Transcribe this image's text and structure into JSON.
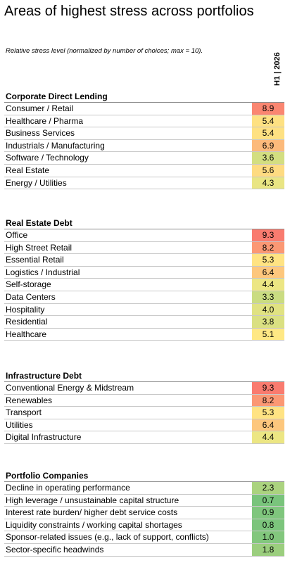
{
  "header": {
    "title": "Areas of highest stress across portfolios",
    "subtitle": "Relative stress level (normalized by number of choices; max = 10).",
    "period": "H1 | 2026"
  },
  "colors": {
    "high": "#f8696b",
    "mid": "#ffeb84",
    "low": "#63be7b"
  },
  "chart_data": {
    "type": "table",
    "title": "Areas of highest stress across portfolios",
    "column": "H1 | 2026",
    "scale_max": 10,
    "sections": [
      {
        "name": "Corporate Direct Lending",
        "rows": [
          {
            "label": "Consumer / Retail",
            "value": 8.9
          },
          {
            "label": "Healthcare / Pharma",
            "value": 5.4
          },
          {
            "label": "Business Services",
            "value": 5.4
          },
          {
            "label": "Industrials / Manufacturing",
            "value": 6.9
          },
          {
            "label": "Software / Technology",
            "value": 3.6
          },
          {
            "label": "Real Estate",
            "value": 5.6
          },
          {
            "label": "Energy / Utilities",
            "value": 4.3
          }
        ]
      },
      {
        "name": "Real Estate Debt",
        "rows": [
          {
            "label": "Office",
            "value": 9.3
          },
          {
            "label": "High Street Retail",
            "value": 8.2
          },
          {
            "label": "Essential Retail",
            "value": 5.3
          },
          {
            "label": "Logistics / Industrial",
            "value": 6.4
          },
          {
            "label": "Self-storage",
            "value": 4.4
          },
          {
            "label": "Data Centers",
            "value": 3.3
          },
          {
            "label": "Hospitality",
            "value": 4.0
          },
          {
            "label": "Residential",
            "value": 3.8
          },
          {
            "label": "Healthcare",
            "value": 5.1
          }
        ]
      },
      {
        "name": "Infrastructure Debt",
        "rows": [
          {
            "label": "Conventional Energy & Midstream",
            "value": 9.3
          },
          {
            "label": "Renewables",
            "value": 8.2
          },
          {
            "label": "Transport",
            "value": 5.3
          },
          {
            "label": "Utilities",
            "value": 6.4
          },
          {
            "label": "Digital Infrastructure",
            "value": 4.4
          }
        ]
      },
      {
        "name": "Portfolio Companies",
        "rows": [
          {
            "label": "Decline in operating performance",
            "value": 2.3
          },
          {
            "label": "High leverage / unsustainable capital structure",
            "value": 0.7
          },
          {
            "label": "Interest rate burden/ higher debt service costs",
            "value": 0.9
          },
          {
            "label": "Liquidity constraints / working capital shortages",
            "value": 0.8
          },
          {
            "label": "Sponsor-related issues (e.g., lack of support, conflicts)",
            "value": 1.0
          },
          {
            "label": "Sector-specific headwinds",
            "value": 1.8
          }
        ]
      }
    ]
  }
}
